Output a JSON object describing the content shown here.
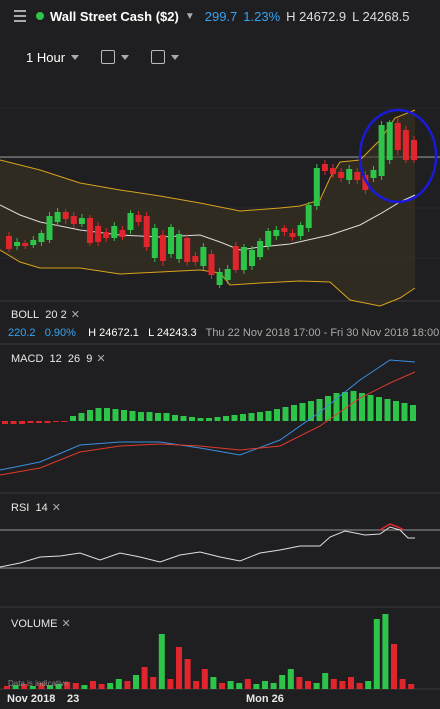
{
  "header": {
    "instrument": "Wall Street Cash ($2)",
    "change": "299.7",
    "change_pct": "1.23%",
    "high": "H 24672.9",
    "low": "L 24268.5",
    "status_color": "#2ec44a"
  },
  "toolbar": {
    "timeframe": "1 Hour",
    "chart_type_icon": "candlestick-icon",
    "drawing_icon": "calendar-icon"
  },
  "indicators": {
    "boll": {
      "name": "BOLL",
      "p1": "20",
      "p2": "2"
    },
    "macd": {
      "name": "MACD",
      "p1": "12",
      "p2": "26",
      "p3": "9"
    },
    "rsi": {
      "name": "RSI",
      "p1": "14"
    },
    "volume": {
      "name": "VOLUME"
    }
  },
  "info_bar": {
    "change": "220.2",
    "change_pct": "0.90%",
    "high": "H 24672.1",
    "low": "L 24243.3",
    "range": "Thu 22 Nov 2018 17:00 - Fri 30 Nov 2018 18:00"
  },
  "disclaimer": "Data is indicative",
  "x_axis": {
    "labels": [
      "Nov 2018",
      "23",
      "Mon 26"
    ]
  },
  "colors": {
    "up": "#2ec44a",
    "down": "#e0262c",
    "annotation": "#1a1adc"
  },
  "chart_data": {
    "type": "candlestick",
    "candles": [
      {
        "d": "down"
      },
      {
        "d": "up"
      },
      {
        "d": "down"
      },
      {
        "d": "up"
      },
      {
        "d": "up"
      },
      {
        "d": "up"
      },
      {
        "d": "up"
      },
      {
        "d": "down"
      },
      {
        "d": "down"
      },
      {
        "d": "up"
      },
      {
        "d": "down"
      },
      {
        "d": "down"
      },
      {
        "d": "down"
      },
      {
        "d": "up"
      },
      {
        "d": "down"
      },
      {
        "d": "up"
      },
      {
        "d": "down"
      },
      {
        "d": "down"
      },
      {
        "d": "up"
      },
      {
        "d": "down"
      },
      {
        "d": "up"
      },
      {
        "d": "up"
      },
      {
        "d": "down"
      },
      {
        "d": "down"
      },
      {
        "d": "up"
      },
      {
        "d": "down"
      },
      {
        "d": "up"
      },
      {
        "d": "up"
      },
      {
        "d": "down"
      },
      {
        "d": "up"
      },
      {
        "d": "up"
      },
      {
        "d": "up"
      },
      {
        "d": "up"
      },
      {
        "d": "up"
      },
      {
        "d": "down"
      },
      {
        "d": "down"
      },
      {
        "d": "up"
      },
      {
        "d": "up"
      },
      {
        "d": "up"
      },
      {
        "d": "down"
      },
      {
        "d": "down"
      },
      {
        "d": "down"
      },
      {
        "d": "up"
      },
      {
        "d": "down"
      },
      {
        "d": "down"
      },
      {
        "d": "up"
      },
      {
        "d": "up"
      },
      {
        "d": "up"
      },
      {
        "d": "down"
      },
      {
        "d": "down"
      },
      {
        "d": "down"
      }
    ]
  }
}
